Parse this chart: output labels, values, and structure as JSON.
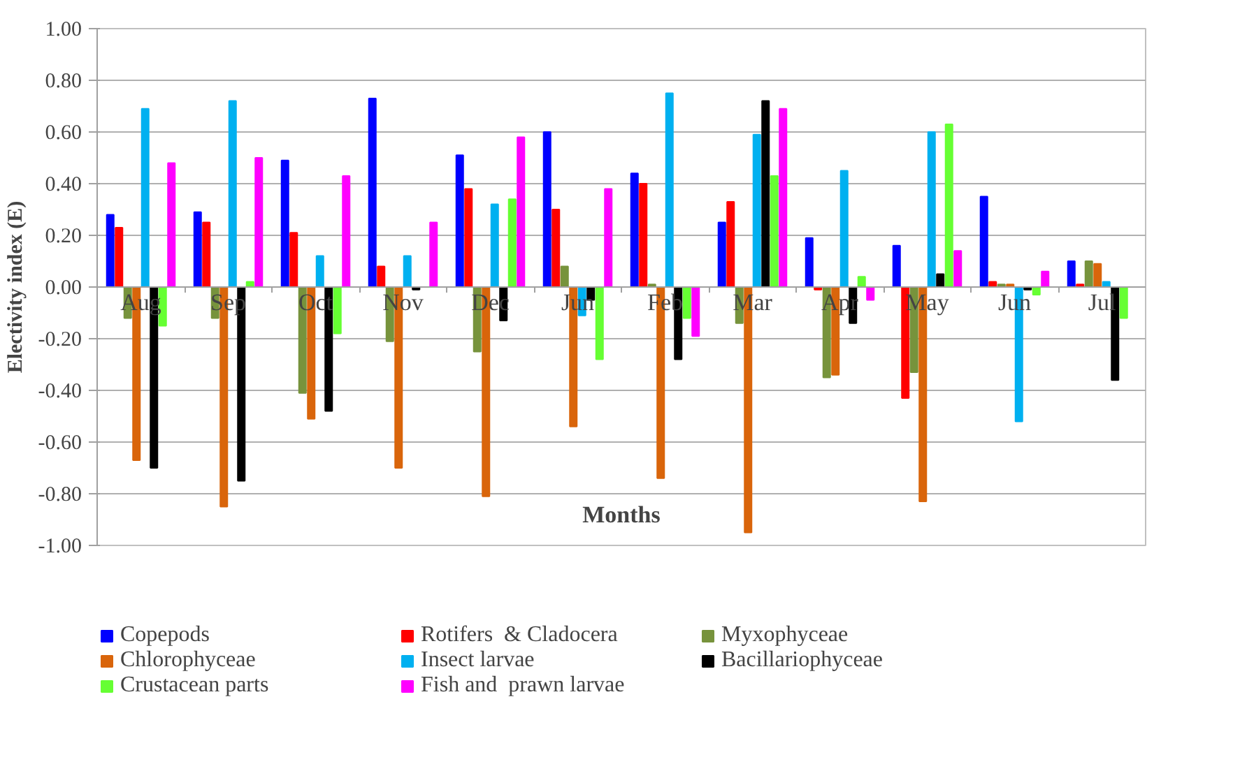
{
  "chart_data": {
    "type": "bar",
    "xlabel": "Months",
    "ylabel": "Electivity index (E)",
    "categories": [
      "Aug",
      "Sep",
      "Oct",
      "Nov",
      "Dec",
      "Jun",
      "Feb",
      "Mar",
      "Apr",
      "May",
      "Jun",
      "Jul"
    ],
    "series": [
      {
        "name": "Copepods",
        "color": "#0000ff",
        "values": [
          0.28,
          0.29,
          0.49,
          0.73,
          0.51,
          0.6,
          0.44,
          0.25,
          0.19,
          0.16,
          0.35,
          0.1
        ]
      },
      {
        "name": "Rotifers  & Cladocera",
        "color": "#ff0000",
        "values": [
          0.23,
          0.25,
          0.21,
          0.08,
          0.38,
          0.3,
          0.4,
          0.33,
          -0.01,
          -0.43,
          0.02,
          0.01
        ]
      },
      {
        "name": "Myxophyceae",
        "color": "#77933c",
        "values": [
          -0.12,
          -0.12,
          -0.41,
          -0.21,
          -0.25,
          0.08,
          0.01,
          -0.14,
          -0.35,
          -0.33,
          0.01,
          0.1
        ]
      },
      {
        "name": "Chlorophyceae",
        "color": "#d9650b",
        "values": [
          -0.67,
          -0.85,
          -0.51,
          -0.7,
          -0.81,
          -0.54,
          -0.74,
          -0.95,
          -0.34,
          -0.83,
          0.01,
          0.09
        ]
      },
      {
        "name": "Insect larvae",
        "color": "#00b0f0",
        "values": [
          0.69,
          0.72,
          0.12,
          0.12,
          0.32,
          -0.11,
          0.75,
          0.59,
          0.45,
          0.6,
          -0.52,
          0.02
        ]
      },
      {
        "name": "Bacillariophyceae",
        "color": "#000000",
        "values": [
          -0.7,
          -0.75,
          -0.48,
          -0.01,
          -0.13,
          -0.05,
          -0.28,
          0.72,
          -0.14,
          0.05,
          -0.01,
          -0.36
        ]
      },
      {
        "name": "Crustacean parts",
        "color": "#66ff33",
        "values": [
          -0.15,
          0.02,
          -0.18,
          0,
          0.34,
          -0.28,
          -0.12,
          0.43,
          0.04,
          0.63,
          -0.03,
          -0.12
        ]
      },
      {
        "name": "Fish and  prawn larvae",
        "color": "#ff00ff",
        "values": [
          0.48,
          0.5,
          0.43,
          0.25,
          0.58,
          0.38,
          -0.19,
          0.69,
          -0.05,
          0.14,
          0.06,
          null
        ]
      }
    ],
    "ylim": [
      -1.0,
      1.0
    ],
    "yticks": [
      {
        "value": -1.0,
        "label": "-1.00"
      },
      {
        "value": -0.8,
        "label": "-0.80"
      },
      {
        "value": -0.6,
        "label": "-0.60"
      },
      {
        "value": -0.4,
        "label": "-0.40"
      },
      {
        "value": -0.2,
        "label": "-0.20"
      },
      {
        "value": 0,
        "label": "0.00"
      },
      {
        "value": 0.2,
        "label": "0.20"
      },
      {
        "value": 0.4,
        "label": "0.40"
      },
      {
        "value": 0.6,
        "label": "0.60"
      },
      {
        "value": 0.8,
        "label": "0.80"
      },
      {
        "value": 1.0,
        "label": "1.00"
      }
    ],
    "grid": "y",
    "legend": "bottom"
  }
}
